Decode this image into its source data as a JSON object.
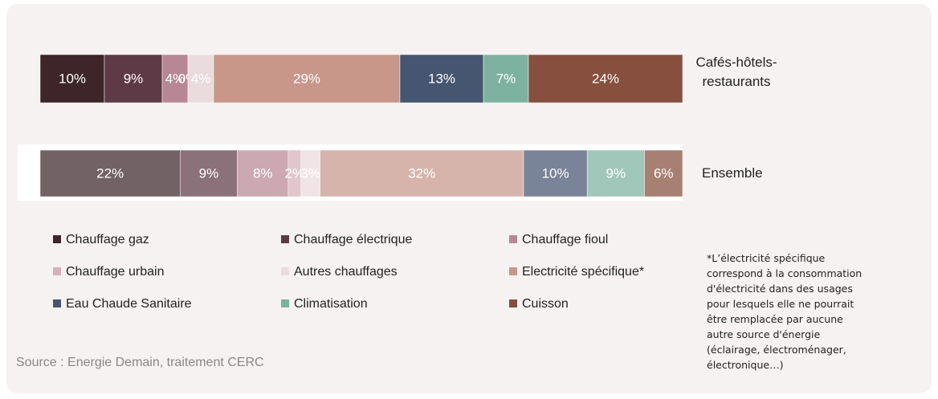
{
  "chart_data": {
    "type": "stacked-bar-100",
    "categories": [
      "Cafés-hôtels-restaurants",
      "Ensemble"
    ],
    "series": [
      {
        "name": "Chauffage gaz",
        "color": "#3d2529",
        "values": [
          10,
          22
        ],
        "value_labels": [
          "10%",
          "22%"
        ]
      },
      {
        "name": "Chauffage électrique",
        "color": "#5e3a46",
        "values": [
          9,
          9
        ],
        "value_labels": [
          "9%",
          "9%"
        ]
      },
      {
        "name": "Chauffage fioul",
        "color": "#b88796",
        "values": [
          4,
          8
        ],
        "value_labels": [
          "4%",
          "8%"
        ]
      },
      {
        "name": "Chauffage urbain",
        "color": "#d2b1ba",
        "values": [
          0,
          2
        ],
        "value_labels": [
          "0%",
          "2%"
        ]
      },
      {
        "name": "Autres chauffages",
        "color": "#eadbdd",
        "values": [
          4,
          3
        ],
        "value_labels": [
          "4%",
          "3%"
        ]
      },
      {
        "name": "Electricité spécifique*",
        "color": "#c8978a",
        "values": [
          29,
          32
        ],
        "value_labels": [
          "29%",
          "32%"
        ]
      },
      {
        "name": "Eau Chaude Sanitaire",
        "color": "#465570",
        "values": [
          13,
          10
        ],
        "value_labels": [
          "13%",
          "10%"
        ]
      },
      {
        "name": "Climatisation",
        "color": "#7db2a0",
        "values": [
          7,
          9
        ],
        "value_labels": [
          "7%",
          "9%"
        ]
      },
      {
        "name": "Cuisson",
        "color": "#874f3d",
        "values": [
          24,
          6
        ],
        "value_labels": [
          "24%",
          "6%"
        ]
      }
    ],
    "annotations": [
      "Source : Energie Demain, traitement CERC",
      "*L’électricité spécifique correspond à la consommation d'électricité dans des usages pour lesquels elle ne pourrait être remplacée par aucune autre source d'énergie (éclairage, électroménager, électronique…)"
    ]
  }
}
